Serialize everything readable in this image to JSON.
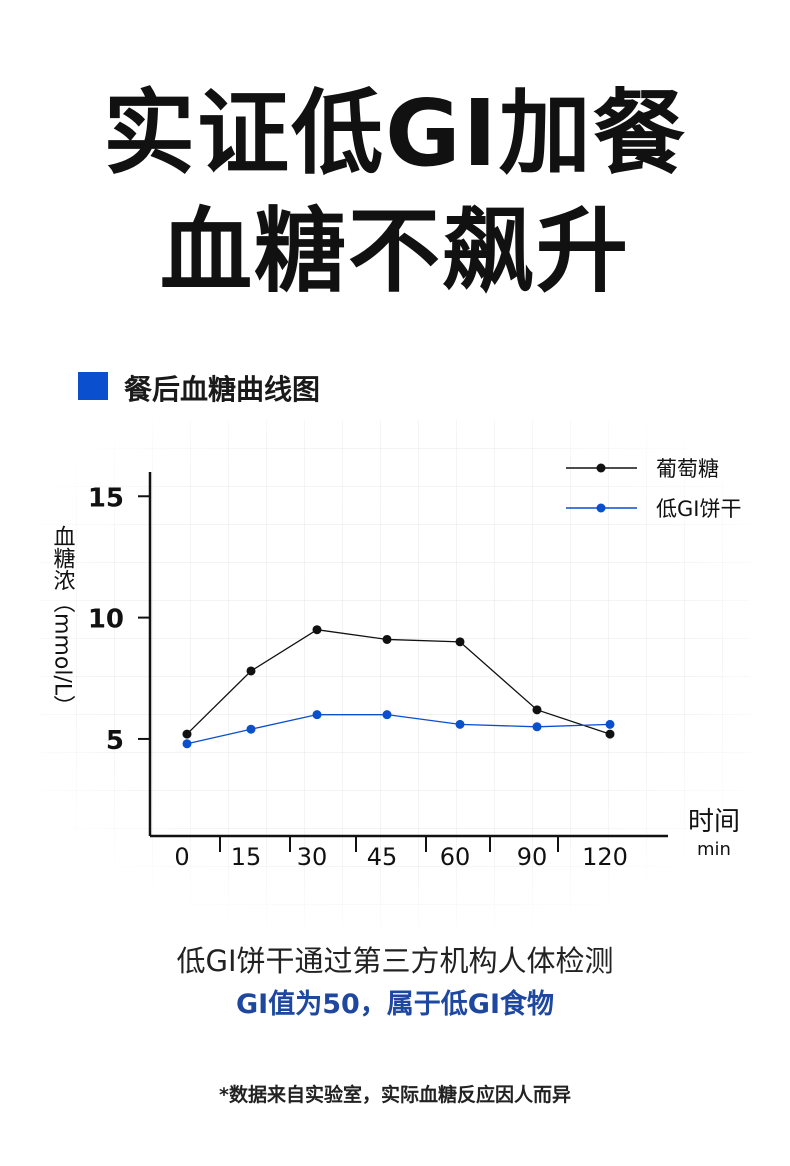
{
  "headline": {
    "line1": "实证低GI加餐",
    "line2": "血糖不飙升"
  },
  "section": {
    "title": "餐后血糖曲线图",
    "marker_color": "#0a4fce"
  },
  "chart_data": {
    "type": "line",
    "categories": [
      "0",
      "15",
      "30",
      "45",
      "60",
      "90",
      "120"
    ],
    "x_title": "时间",
    "x_unit": "min",
    "y_title": "血糖浓（mmol/L）",
    "y_ticks": [
      5,
      10,
      15
    ],
    "ylim": [
      1,
      16
    ],
    "series": [
      {
        "name": "葡萄糖",
        "color": "#111111",
        "values": [
          5.2,
          7.8,
          9.5,
          9.1,
          9.0,
          6.2,
          5.2
        ]
      },
      {
        "name": "低GI饼干",
        "color": "#0a4fce",
        "values": [
          4.8,
          5.4,
          6.0,
          6.0,
          5.6,
          5.5,
          5.6
        ]
      }
    ],
    "legend_position": "top-right",
    "grid": true
  },
  "captions": {
    "line1": "低GI饼干通过第三方机构人体检测",
    "line2": "GI值为50，属于低GI食物",
    "footnote": "*数据来自实验室，实际血糖反应因人而异"
  }
}
